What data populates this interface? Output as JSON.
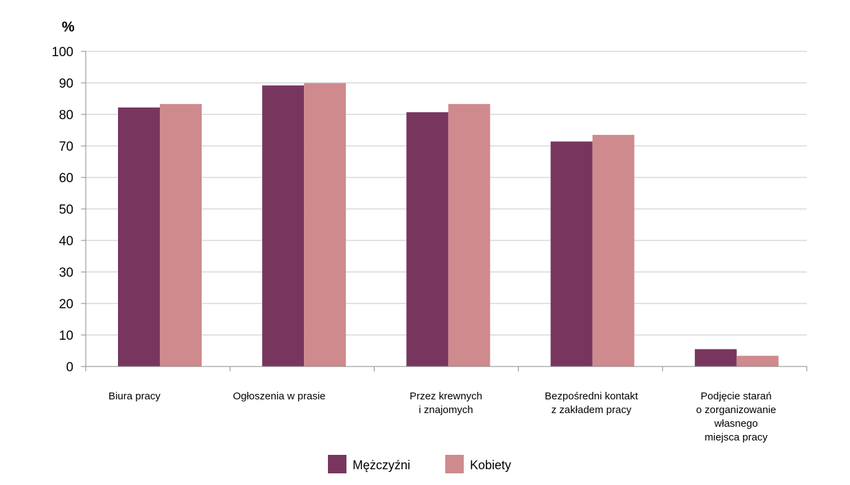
{
  "chart_data": {
    "type": "bar",
    "ylabel": "%",
    "ylim": [
      0,
      100
    ],
    "yticks": [
      "0",
      "10",
      "20",
      "30",
      "40",
      "50",
      "60",
      "70",
      "80",
      "90",
      "100"
    ],
    "grid": true,
    "legend_position": "bottom",
    "categories": [
      [
        "Biura  pracy"
      ],
      [
        "Ogłoszenia w prasie"
      ],
      [
        "Przez krewnych",
        "i znajomych"
      ],
      [
        "Bezpośredni kontakt",
        "z zakładem pracy"
      ],
      [
        "Podjęcie starań",
        "o zorganizowanie",
        "własnego",
        "miejsca pracy"
      ]
    ],
    "series": [
      {
        "name": "Mężczyźni",
        "color": "#78365f",
        "values": [
          82.2,
          89.2,
          80.7,
          71.4,
          5.5
        ]
      },
      {
        "name": "Kobiety",
        "color": "#cf8a8e",
        "values": [
          83.3,
          89.9,
          83.3,
          73.5,
          3.4
        ]
      }
    ]
  }
}
